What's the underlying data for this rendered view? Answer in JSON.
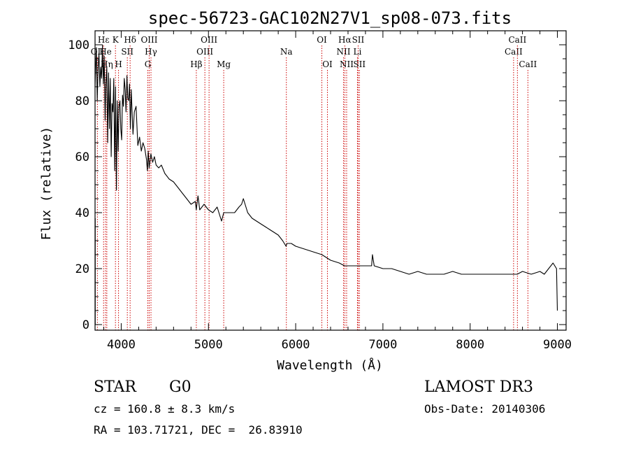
{
  "chart_data": {
    "type": "line",
    "title": "spec-56723-GAC102N27V1_sp08-073.fits",
    "xlabel": "Wavelength (Å)",
    "ylabel": "Flux (relative)",
    "xlim": [
      3700,
      9100
    ],
    "ylim": [
      -2,
      105
    ],
    "xticks": [
      4000,
      5000,
      6000,
      7000,
      8000,
      9000
    ],
    "yticks": [
      0,
      20,
      40,
      60,
      80,
      100
    ],
    "spectrum": {
      "x": [
        3700,
        3715,
        3725,
        3735,
        3745,
        3755,
        3765,
        3775,
        3785,
        3795,
        3805,
        3815,
        3825,
        3835,
        3845,
        3855,
        3865,
        3875,
        3885,
        3895,
        3905,
        3915,
        3925,
        3935,
        3945,
        3955,
        3965,
        3975,
        3985,
        3995,
        4005,
        4015,
        4025,
        4035,
        4045,
        4055,
        4065,
        4075,
        4085,
        4095,
        4105,
        4115,
        4125,
        4135,
        4150,
        4170,
        4190,
        4210,
        4230,
        4250,
        4270,
        4290,
        4300,
        4310,
        4320,
        4340,
        4360,
        4380,
        4400,
        4430,
        4460,
        4500,
        4550,
        4600,
        4650,
        4700,
        4750,
        4800,
        4850,
        4860,
        4880,
        4900,
        4950,
        5000,
        5050,
        5100,
        5150,
        5175,
        5200,
        5250,
        5300,
        5350,
        5380,
        5400,
        5450,
        5500,
        5550,
        5600,
        5650,
        5700,
        5750,
        5800,
        5850,
        5890,
        5900,
        5950,
        6000,
        6100,
        6200,
        6300,
        6400,
        6500,
        6560,
        6600,
        6700,
        6800,
        6870,
        6880,
        6900,
        7000,
        7100,
        7200,
        7300,
        7400,
        7500,
        7600,
        7700,
        7800,
        7900,
        8000,
        8100,
        8200,
        8300,
        8400,
        8500,
        8540,
        8600,
        8700,
        8800,
        8850,
        8900,
        8950,
        8970,
        8990,
        9000
      ],
      "y": [
        85,
        99,
        80,
        92,
        97,
        85,
        92,
        88,
        100,
        86,
        96,
        73,
        86,
        92,
        65,
        90,
        70,
        88,
        60,
        79,
        76,
        88,
        55,
        85,
        48,
        80,
        62,
        78,
        80,
        70,
        66,
        82,
        78,
        88,
        84,
        76,
        89,
        81,
        80,
        86,
        70,
        84,
        76,
        68,
        76,
        78,
        64,
        67,
        62,
        65,
        63,
        59,
        55,
        62,
        56,
        61,
        58,
        60,
        57,
        56,
        57,
        54,
        52,
        51,
        49,
        47,
        45,
        43,
        44,
        41,
        46,
        41,
        43,
        41,
        40,
        42,
        37,
        40,
        40,
        40,
        40,
        42,
        43,
        45,
        40,
        38,
        37,
        36,
        35,
        34,
        33,
        32,
        30,
        28,
        29,
        29,
        28,
        27,
        26,
        25,
        23,
        22,
        21,
        21,
        21,
        21,
        21,
        25,
        21,
        20,
        20,
        19,
        18,
        19,
        18,
        18,
        18,
        19,
        18,
        18,
        18,
        18,
        18,
        18,
        18,
        18,
        19,
        18,
        19,
        18,
        20,
        22,
        21,
        20,
        5
      ]
    },
    "lines": [
      {
        "name": "OII",
        "wl": 3727,
        "row": 1
      },
      {
        "name": "Hε",
        "wl": 3798,
        "row": 0
      },
      {
        "name": "He",
        "wl": 3820,
        "row": 1
      },
      {
        "name": "Hη",
        "wl": 3835,
        "row": 2
      },
      {
        "name": "K",
        "wl": 3934,
        "row": 0
      },
      {
        "name": "H",
        "wl": 3969,
        "row": 2
      },
      {
        "name": "SII",
        "wl": 4070,
        "row": 1
      },
      {
        "name": "Hδ",
        "wl": 4102,
        "row": 0
      },
      {
        "name": "OIII",
        "wl": 4321,
        "row": 0
      },
      {
        "name": "Hγ",
        "wl": 4341,
        "row": 1
      },
      {
        "name": "G",
        "wl": 4305,
        "row": 2
      },
      {
        "name": "Hβ",
        "wl": 4861,
        "row": 2
      },
      {
        "name": "OIII",
        "wl": 4959,
        "row": 1
      },
      {
        "name": "OIII",
        "wl": 5007,
        "row": 0
      },
      {
        "name": "Mg",
        "wl": 5175,
        "row": 2
      },
      {
        "name": "Na",
        "wl": 5893,
        "row": 1
      },
      {
        "name": "OI",
        "wl": 6300,
        "row": 0
      },
      {
        "name": "OI",
        "wl": 6364,
        "row": 2
      },
      {
        "name": "NII",
        "wl": 6548,
        "row": 1
      },
      {
        "name": "Hα",
        "wl": 6563,
        "row": 0
      },
      {
        "name": "NII",
        "wl": 6584,
        "row": 2
      },
      {
        "name": "SII",
        "wl": 6716,
        "row": 0
      },
      {
        "name": "Li",
        "wl": 6708,
        "row": 1
      },
      {
        "name": "SII",
        "wl": 6731,
        "row": 2
      },
      {
        "name": "CaII",
        "wl": 8498,
        "row": 1
      },
      {
        "name": "CaII",
        "wl": 8542,
        "row": 0
      },
      {
        "name": "CaII",
        "wl": 8662,
        "row": 2
      }
    ]
  },
  "info": {
    "class": "STAR",
    "subclass": "G0",
    "survey": "LAMOST DR3",
    "redshift": "cz = 160.8 ± 8.3 km/s",
    "obs_date": "Obs-Date: 20140306",
    "coords": "RA = 103.71721, DEC =  26.83910"
  },
  "colors": {
    "spectrum": "#000000",
    "lines": "#cc0000",
    "axes": "#000000"
  }
}
